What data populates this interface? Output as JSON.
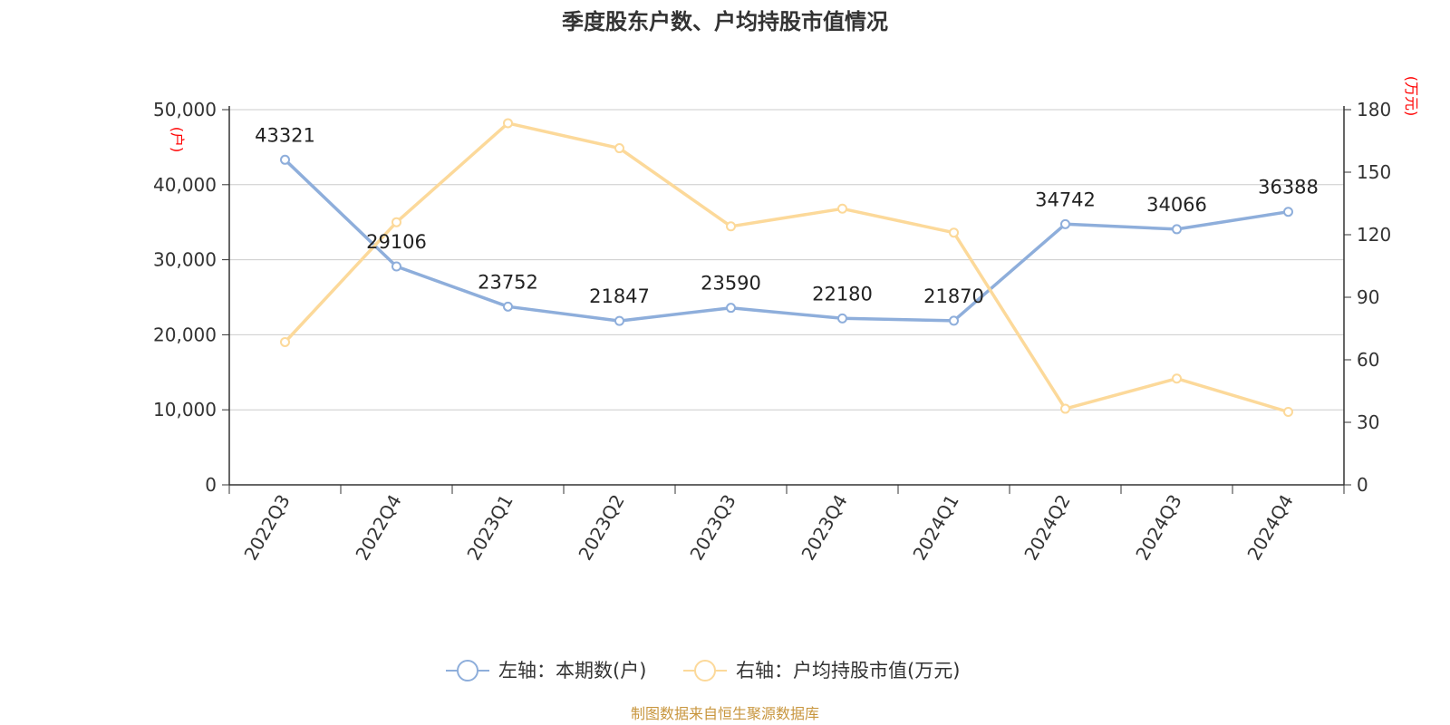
{
  "chart_data": {
    "type": "line",
    "title": "季度股东户数、户均持股市值情况",
    "categories": [
      "2022Q3",
      "2022Q4",
      "2023Q1",
      "2023Q2",
      "2023Q3",
      "2023Q4",
      "2024Q1",
      "2024Q2",
      "2024Q3",
      "2024Q4"
    ],
    "series": [
      {
        "name": "左轴：本期数(户)",
        "axis": "left",
        "color": "#8eaedb",
        "values": [
          43321,
          29106,
          23752,
          21847,
          23590,
          22180,
          21870,
          34742,
          34066,
          36388
        ],
        "data_labels": [
          "43321",
          "29106",
          "23752",
          "21847",
          "23590",
          "22180",
          "21870",
          "34742",
          "34066",
          "36388"
        ]
      },
      {
        "name": "右轴：户均持股市值(万元)",
        "axis": "right",
        "color": "#fcd99a",
        "values": [
          68.5,
          126,
          173.5,
          161.5,
          124,
          132.5,
          121,
          36.5,
          51,
          35
        ]
      }
    ],
    "y_left": {
      "unit_label": "(户)",
      "ylim": [
        0,
        50000
      ],
      "ticks": [
        0,
        10000,
        20000,
        30000,
        40000,
        50000
      ],
      "tick_labels": [
        "0",
        "10,000",
        "20,000",
        "30,000",
        "40,000",
        "50,000"
      ]
    },
    "y_right": {
      "unit_label": "(万元)",
      "ylim": [
        0,
        180
      ],
      "ticks": [
        0,
        30,
        60,
        90,
        120,
        150,
        180
      ],
      "tick_labels": [
        "0",
        "30",
        "60",
        "90",
        "120",
        "150",
        "180"
      ]
    },
    "grid": true,
    "legend_position": "bottom-center",
    "source_text": "制图数据来自恒生聚源数据库",
    "source_color": "#c8963e"
  }
}
